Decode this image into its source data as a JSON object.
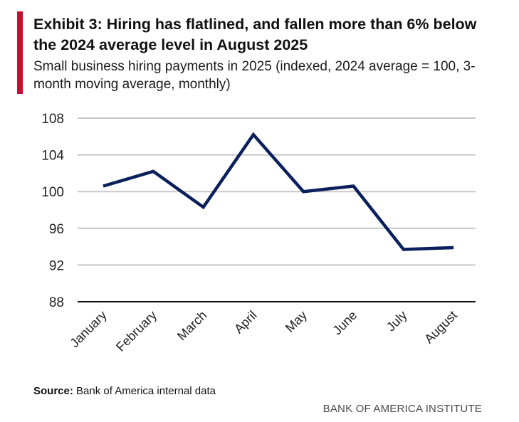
{
  "header": {
    "title": "Exhibit 3: Hiring has flatlined, and fallen more than 6% below the 2024 average level in August 2025",
    "subtitle": "Small business hiring payments in 2025 (indexed, 2024 average = 100, 3-month moving average, monthly)",
    "accent_color": "#c8102e"
  },
  "footer": {
    "source_label": "Source:",
    "source_text": "Bank of America internal data",
    "brand": "BANK OF AMERICA INSTITUTE"
  },
  "chart_data": {
    "type": "line",
    "title": "",
    "xlabel": "",
    "ylabel": "",
    "categories": [
      "January",
      "February",
      "March",
      "April",
      "May",
      "June",
      "July",
      "August"
    ],
    "series": [
      {
        "values": [
          100.6,
          102.2,
          98.3,
          106.2,
          100.0,
          100.6,
          93.7,
          93.9
        ],
        "color": "#0a1f5c"
      }
    ],
    "ylim": [
      88,
      108
    ],
    "yticks": [
      "108",
      "104",
      "100",
      "96",
      "92",
      "88"
    ],
    "grid": true,
    "grid_color": "#c8c8c8",
    "legend": "none"
  }
}
